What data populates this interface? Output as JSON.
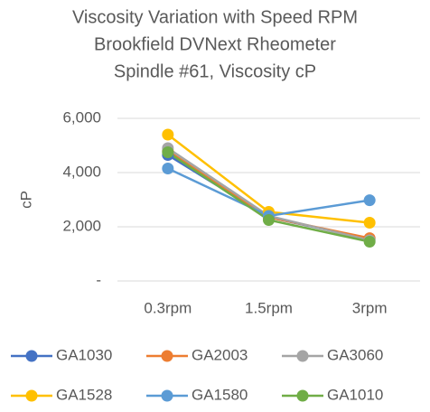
{
  "chart_data": {
    "type": "line",
    "title": [
      "Viscosity Variation with Speed RPM",
      "Brookfield DVNext Rheometer",
      "Spindle #61, Viscosity cP"
    ],
    "y_label": "cP",
    "categories": [
      "0.3rpm",
      "1.5rpm",
      "3rpm"
    ],
    "series": [
      {
        "name": "GA1030",
        "color": "#4472c4",
        "values": [
          4650,
          2350,
          1550
        ]
      },
      {
        "name": "GA2003",
        "color": "#ed7d31",
        "values": [
          4800,
          2350,
          1580
        ]
      },
      {
        "name": "GA3060",
        "color": "#a5a5a5",
        "values": [
          4900,
          2400,
          1500
        ]
      },
      {
        "name": "GA1528",
        "color": "#ffc000",
        "values": [
          5400,
          2550,
          2150
        ]
      },
      {
        "name": "GA1580",
        "color": "#5b9bd5",
        "values": [
          4150,
          2400,
          2980
        ]
      },
      {
        "name": "GA1010",
        "color": "#70ad47",
        "values": [
          4750,
          2250,
          1450
        ]
      }
    ],
    "ylim": [
      0,
      6000
    ],
    "yticks": [
      {
        "value": 0,
        "label": "-"
      },
      {
        "value": 2000,
        "label": "2,000"
      },
      {
        "value": 4000,
        "label": "4,000"
      },
      {
        "value": 6000,
        "label": "6,000"
      }
    ],
    "grid": true,
    "legend": "bottom"
  }
}
